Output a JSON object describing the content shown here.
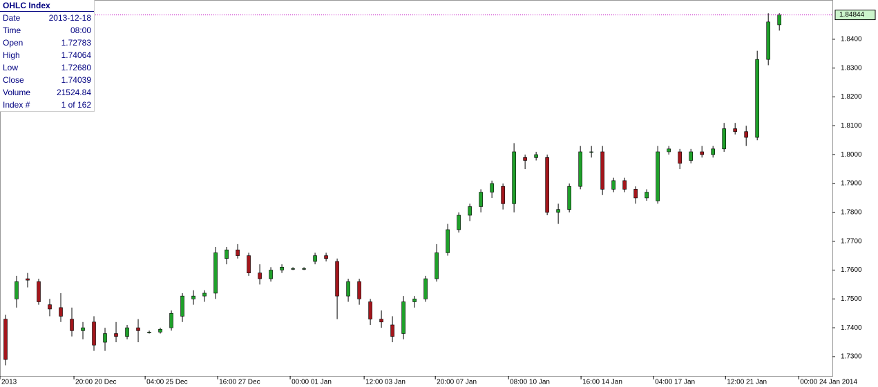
{
  "info_box": {
    "title": "OHLC Index",
    "rows": [
      [
        "Date",
        "2013-12-18"
      ],
      [
        "Time",
        "08:00"
      ],
      [
        "Open",
        "1.72783"
      ],
      [
        "High",
        "1.74064"
      ],
      [
        "Low",
        "1.72680"
      ],
      [
        "Close",
        "1.74039"
      ],
      [
        "Volume",
        "21524.84"
      ],
      [
        "Index #",
        "1 of 162"
      ]
    ]
  },
  "chart_data": {
    "type": "candlestick",
    "x": [
      0,
      1,
      2,
      3,
      4,
      5,
      6,
      7,
      8,
      9,
      10,
      11,
      12,
      13,
      14,
      15,
      16,
      17,
      18,
      19,
      20,
      21,
      22,
      23,
      24,
      25,
      26,
      27,
      28,
      29,
      30,
      31,
      32,
      33,
      34,
      35,
      36,
      37,
      38,
      39,
      40,
      41,
      42,
      43,
      44,
      45,
      46,
      47,
      48,
      49,
      50,
      51,
      52,
      53,
      54,
      55,
      56,
      57,
      58,
      59,
      60,
      61,
      62,
      63,
      64,
      65,
      66,
      67,
      68,
      69,
      70
    ],
    "open": [
      1.743,
      1.75,
      1.757,
      1.756,
      1.748,
      1.747,
      1.743,
      1.739,
      1.742,
      1.735,
      1.738,
      1.737,
      1.74,
      1.7385,
      1.7385,
      1.74,
      1.744,
      1.75,
      1.751,
      1.752,
      1.764,
      1.767,
      1.765,
      1.759,
      1.757,
      1.76,
      1.7605,
      1.7605,
      1.763,
      1.765,
      1.763,
      1.751,
      1.756,
      1.749,
      1.743,
      1.741,
      1.738,
      1.749,
      1.75,
      1.757,
      1.766,
      1.774,
      1.779,
      1.782,
      1.787,
      1.789,
      1.783,
      1.799,
      1.799,
      1.799,
      1.78,
      1.781,
      1.789,
      1.801,
      1.801,
      1.788,
      1.791,
      1.788,
      1.785,
      1.784,
      1.801,
      1.801,
      1.798,
      1.801,
      1.8,
      1.802,
      1.809,
      1.808,
      1.806,
      1.833,
      1.845
    ],
    "high": [
      1.7445,
      1.758,
      1.759,
      1.757,
      1.75,
      1.752,
      1.747,
      1.742,
      1.744,
      1.74,
      1.742,
      1.741,
      1.743,
      1.739,
      1.74,
      1.746,
      1.752,
      1.753,
      1.753,
      1.768,
      1.768,
      1.769,
      1.766,
      1.762,
      1.761,
      1.762,
      1.761,
      1.761,
      1.766,
      1.766,
      1.764,
      1.757,
      1.757,
      1.75,
      1.746,
      1.744,
      1.751,
      1.751,
      1.758,
      1.769,
      1.776,
      1.78,
      1.783,
      1.788,
      1.791,
      1.79,
      1.804,
      1.8,
      1.801,
      1.8,
      1.783,
      1.79,
      1.803,
      1.803,
      1.803,
      1.792,
      1.792,
      1.789,
      1.788,
      1.803,
      1.803,
      1.802,
      1.802,
      1.803,
      1.803,
      1.811,
      1.811,
      1.81,
      1.836,
      1.849,
      1.849
    ],
    "low": [
      1.727,
      1.747,
      1.754,
      1.748,
      1.744,
      1.742,
      1.737,
      1.736,
      1.732,
      1.732,
      1.735,
      1.736,
      1.735,
      1.738,
      1.738,
      1.739,
      1.742,
      1.748,
      1.749,
      1.75,
      1.762,
      1.764,
      1.758,
      1.755,
      1.756,
      1.759,
      1.76,
      1.76,
      1.762,
      1.763,
      1.743,
      1.749,
      1.748,
      1.741,
      1.74,
      1.735,
      1.736,
      1.747,
      1.749,
      1.756,
      1.765,
      1.773,
      1.777,
      1.78,
      1.785,
      1.781,
      1.78,
      1.795,
      1.798,
      1.779,
      1.776,
      1.78,
      1.788,
      1.799,
      1.786,
      1.787,
      1.787,
      1.783,
      1.784,
      1.783,
      1.8,
      1.795,
      1.797,
      1.799,
      1.799,
      1.801,
      1.807,
      1.803,
      1.805,
      1.831,
      1.843
    ],
    "close": [
      1.729,
      1.756,
      1.7565,
      1.749,
      1.7465,
      1.744,
      1.739,
      1.74,
      1.734,
      1.738,
      1.737,
      1.74,
      1.739,
      1.7385,
      1.7395,
      1.745,
      1.751,
      1.751,
      1.752,
      1.766,
      1.767,
      1.765,
      1.759,
      1.757,
      1.76,
      1.761,
      1.7605,
      1.7605,
      1.765,
      1.764,
      1.751,
      1.756,
      1.75,
      1.743,
      1.742,
      1.737,
      1.749,
      1.75,
      1.757,
      1.766,
      1.774,
      1.779,
      1.782,
      1.787,
      1.79,
      1.783,
      1.801,
      1.798,
      1.8,
      1.78,
      1.781,
      1.789,
      1.801,
      1.801,
      1.788,
      1.791,
      1.788,
      1.785,
      1.787,
      1.801,
      1.802,
      1.797,
      1.801,
      1.8,
      1.802,
      1.809,
      1.808,
      1.806,
      1.833,
      1.846,
      1.84844
    ],
    "up_color": "#1fa02a",
    "down_color": "#a3161c",
    "last_price": 1.84844,
    "last_price_color": "#c000c0",
    "xlim": [
      -0.5,
      74.8
    ],
    "ylim": [
      1.7233,
      1.8536
    ],
    "xticks": [
      {
        "value": -0.5,
        "label": "2013"
      },
      {
        "value": 6.19,
        "label": "20:00 20 Dec"
      },
      {
        "value": 12.63,
        "label": "04:00 25 Dec"
      },
      {
        "value": 19.19,
        "label": "16:00 27 Dec"
      },
      {
        "value": 25.75,
        "label": "00:00 01 Jan"
      },
      {
        "value": 32.44,
        "label": "12:00 03 Jan"
      },
      {
        "value": 38.88,
        "label": "20:00 07 Jan"
      },
      {
        "value": 45.5,
        "label": "08:00 10 Jan"
      },
      {
        "value": 52.06,
        "label": "16:00 14 Jan"
      },
      {
        "value": 58.63,
        "label": "04:00 17 Jan"
      },
      {
        "value": 65.13,
        "label": "12:00 21 Jan"
      },
      {
        "value": 71.75,
        "label": "00:00 24 Jan 2014"
      }
    ],
    "yticks": [
      {
        "value": 1.73,
        "label": "1.7300"
      },
      {
        "value": 1.74,
        "label": "1.7400"
      },
      {
        "value": 1.75,
        "label": "1.7500"
      },
      {
        "value": 1.76,
        "label": "1.7600"
      },
      {
        "value": 1.77,
        "label": "1.7700"
      },
      {
        "value": 1.78,
        "label": "1.7800"
      },
      {
        "value": 1.79,
        "label": "1.7900"
      },
      {
        "value": 1.8,
        "label": "1.8000"
      },
      {
        "value": 1.81,
        "label": "1.8100"
      },
      {
        "value": 1.82,
        "label": "1.8200"
      },
      {
        "value": 1.83,
        "label": "1.8300"
      },
      {
        "value": 1.84,
        "label": "1.8400"
      }
    ]
  }
}
